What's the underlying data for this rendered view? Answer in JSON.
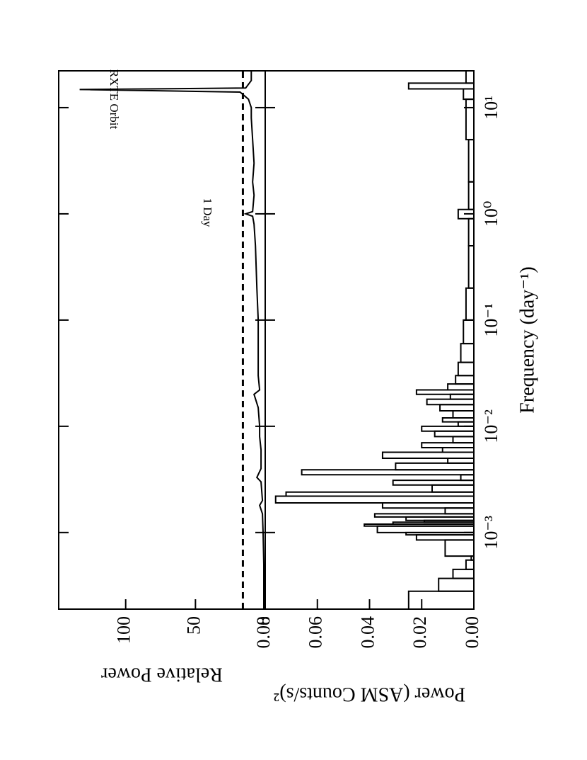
{
  "chart_data": [
    {
      "type": "line",
      "ylabel": "Relative Power",
      "x": [
        0.00019,
        0.0003,
        0.0005,
        0.001,
        0.0015,
        0.0018,
        0.002,
        0.003,
        0.0033,
        0.004,
        0.006,
        0.008,
        0.01,
        0.015,
        0.02,
        0.022,
        0.03,
        0.05,
        0.1,
        0.2,
        0.5,
        0.8,
        0.95,
        1.0,
        1.05,
        1.5,
        2,
        3,
        5,
        8,
        10,
        12,
        14,
        14.8,
        15.3,
        18,
        22
      ],
      "values": [
        1,
        1,
        1,
        1.5,
        2,
        4,
        2,
        3,
        6,
        3,
        3,
        4,
        4,
        5,
        8,
        4,
        5,
        5,
        5,
        6,
        7,
        8,
        9,
        14,
        9,
        8,
        9,
        8,
        9,
        10,
        10,
        12,
        18,
        133,
        14,
        10,
        10
      ],
      "threshold": 16,
      "annotations": [
        "1 Day",
        "RXTE Orbit"
      ],
      "xlim": [
        0.00019,
        22.2
      ],
      "ylim": [
        0,
        148
      ],
      "yticks": [
        0,
        50,
        100
      ]
    },
    {
      "type": "histogram",
      "ylabel": "Power (ASM Counts/s)²",
      "xlabel": "Frequency (day⁻¹)",
      "bins": [
        0.00019,
        0.00028,
        0.00037,
        0.00045,
        0.00055,
        0.0006,
        0.00085,
        0.00095,
        0.001,
        0.00115,
        0.0012,
        0.00125,
        0.0013,
        0.0014,
        0.0015,
        0.0017,
        0.0019,
        0.0022,
        0.0024,
        0.0028,
        0.0031,
        0.0035,
        0.0039,
        0.0045,
        0.005,
        0.0057,
        0.0063,
        0.007,
        0.008,
        0.009,
        0.01,
        0.011,
        0.012,
        0.014,
        0.016,
        0.018,
        0.02,
        0.022,
        0.025,
        0.03,
        0.04,
        0.06,
        0.1,
        0.2,
        0.5,
        0.9,
        1.1,
        2,
        5,
        12,
        15,
        17,
        22.2
      ],
      "values": [
        0.025,
        0.0135,
        0.008,
        0.003,
        0.001,
        0.011,
        0.022,
        0.026,
        0.037,
        0.042,
        0.031,
        0.019,
        0.026,
        0.038,
        0.011,
        0.035,
        0.076,
        0.072,
        0.016,
        0.031,
        0.005,
        0.066,
        0.03,
        0.01,
        0.035,
        0.012,
        0.02,
        0.008,
        0.015,
        0.02,
        0.006,
        0.012,
        0.008,
        0.013,
        0.018,
        0.009,
        0.022,
        0.01,
        0.007,
        0.006,
        0.005,
        0.004,
        0.003,
        0.002,
        0.002,
        0.006,
        0.002,
        0.002,
        0.003,
        0.004,
        0.025,
        0.003
      ],
      "xlim": [
        0.00019,
        22.2
      ],
      "ylim": [
        0,
        0.08
      ],
      "xticks": [
        {
          "value": 0.001,
          "label": "10⁻³"
        },
        {
          "value": 0.01,
          "label": "10⁻²"
        },
        {
          "value": 0.1,
          "label": "10⁻¹"
        },
        {
          "value": 1,
          "label": "10⁰"
        },
        {
          "value": 10,
          "label": "10¹"
        }
      ],
      "yticks": [
        {
          "value": 0,
          "label": "0.00"
        },
        0.02,
        0.04,
        0.06,
        0.08
      ]
    }
  ]
}
